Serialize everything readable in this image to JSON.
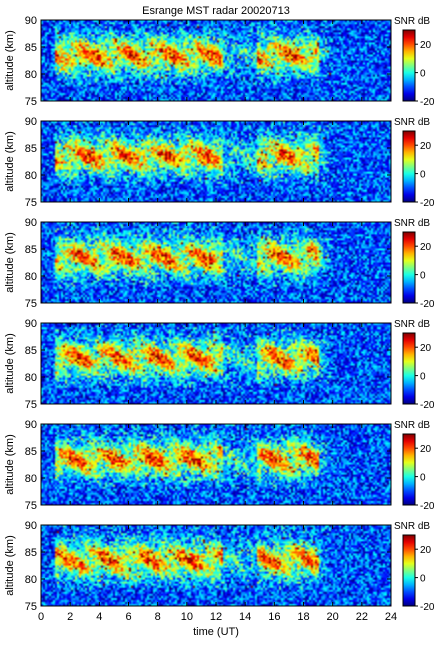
{
  "chart_data": {
    "type": "heatmap",
    "title": "Esrange MST radar 20020713",
    "xlabel": "time (UT)",
    "ylabel": "altitude (km)",
    "colorbar_label": "SNR dB",
    "xlim": [
      0,
      24
    ],
    "ylim": [
      75,
      90
    ],
    "clim": [
      -20,
      30
    ],
    "x_ticks": [
      0,
      2,
      4,
      6,
      8,
      10,
      12,
      14,
      16,
      18,
      20,
      22,
      24
    ],
    "y_ticks": [
      75,
      80,
      85,
      90
    ],
    "colorbar_ticks": [
      -20,
      0,
      20
    ],
    "colormap": "jet",
    "panel_count": 6,
    "echo_layer": {
      "altitude_range_km": [
        78,
        90
      ],
      "strongest_altitude_km": [
        81,
        86
      ],
      "time_range_ut": [
        1,
        20
      ],
      "background_snr_db": -10,
      "peak_snr_db": 30
    }
  }
}
